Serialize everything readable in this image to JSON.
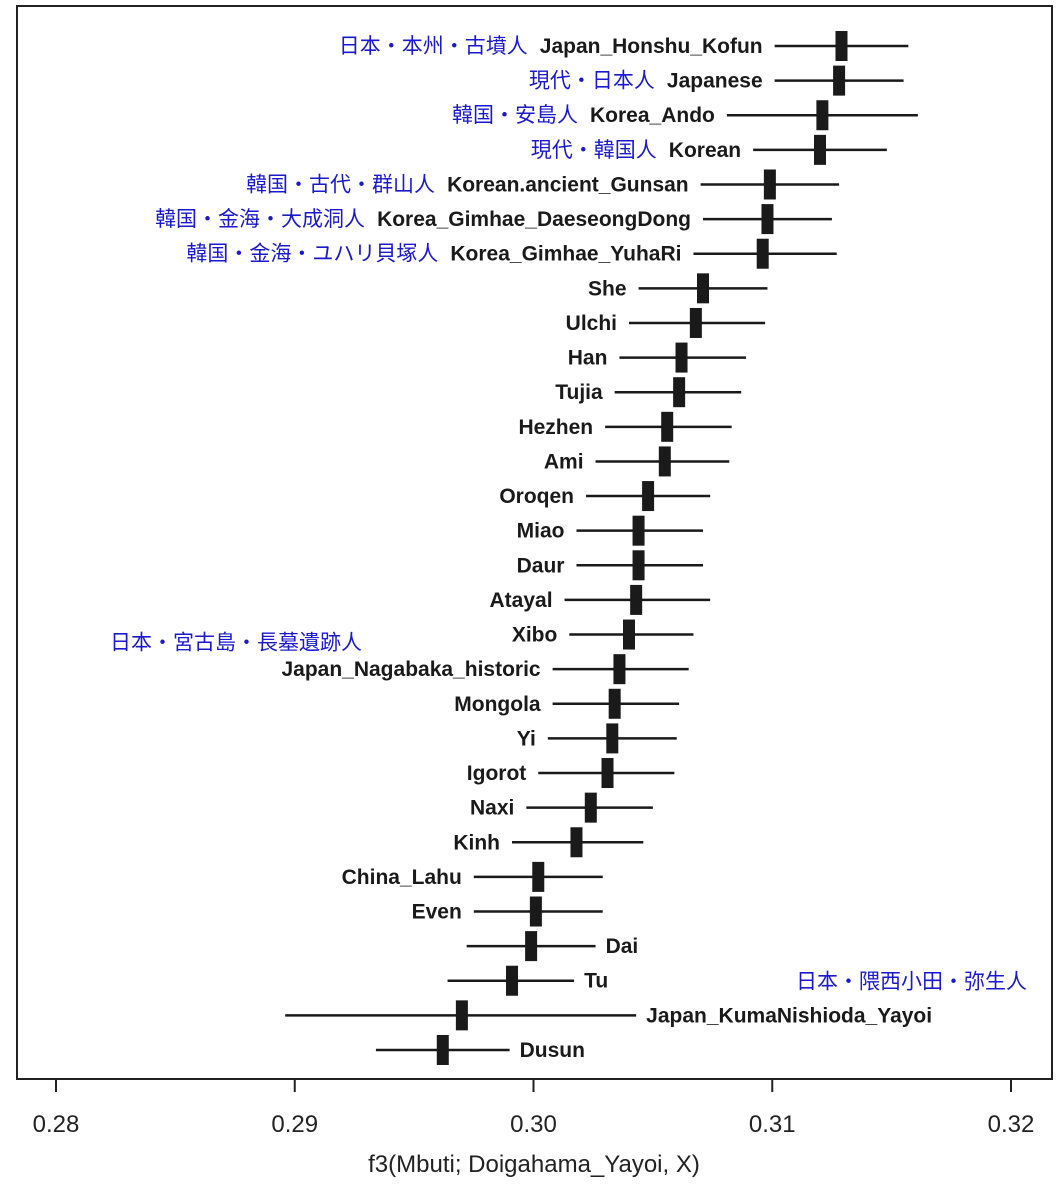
{
  "chart_data": {
    "type": "scatter",
    "title": "",
    "xlabel": "f3(Mbuti; Doigahama_Yayoi, X)",
    "ylabel": "",
    "xlim": [
      0.28,
      0.32
    ],
    "xticks": [
      "0.28",
      "0.29",
      "0.30",
      "0.31",
      "0.32"
    ],
    "grid": false,
    "points": [
      {
        "label": "Japan_Honshu_Kofun",
        "value": 0.3129,
        "lo": 0.3101,
        "hi": 0.3157,
        "label_side": "left",
        "annotation": "日本・本州・古墳人"
      },
      {
        "label": "Japanese",
        "value": 0.3128,
        "lo": 0.3101,
        "hi": 0.3155,
        "label_side": "left",
        "annotation": "現代・日本人"
      },
      {
        "label": "Korea_Ando",
        "value": 0.3121,
        "lo": 0.3081,
        "hi": 0.3161,
        "label_side": "left",
        "annotation": "韓国・安島人"
      },
      {
        "label": "Korean",
        "value": 0.312,
        "lo": 0.3092,
        "hi": 0.3148,
        "label_side": "left",
        "annotation": "現代・韓国人"
      },
      {
        "label": "Korean.ancient_Gunsan",
        "value": 0.3099,
        "lo": 0.307,
        "hi": 0.3128,
        "label_side": "left",
        "annotation": "韓国・古代・群山人"
      },
      {
        "label": "Korea_Gimhae_DaeseongDong",
        "value": 0.3098,
        "lo": 0.3071,
        "hi": 0.3125,
        "label_side": "left",
        "annotation": "韓国・金海・大成洞人"
      },
      {
        "label": "Korea_Gimhae_YuhaRi",
        "value": 0.3096,
        "lo": 0.3067,
        "hi": 0.3127,
        "label_side": "left",
        "annotation": "韓国・金海・ユハリ貝塚人"
      },
      {
        "label": "She",
        "value": 0.3071,
        "lo": 0.3044,
        "hi": 0.3098,
        "label_side": "left",
        "annotation": ""
      },
      {
        "label": "Ulchi",
        "value": 0.3068,
        "lo": 0.304,
        "hi": 0.3097,
        "label_side": "left",
        "annotation": ""
      },
      {
        "label": "Han",
        "value": 0.3062,
        "lo": 0.3036,
        "hi": 0.3089,
        "label_side": "left",
        "annotation": ""
      },
      {
        "label": "Tujia",
        "value": 0.3061,
        "lo": 0.3034,
        "hi": 0.3087,
        "label_side": "left",
        "annotation": ""
      },
      {
        "label": "Hezhen",
        "value": 0.3056,
        "lo": 0.303,
        "hi": 0.3083,
        "label_side": "left",
        "annotation": ""
      },
      {
        "label": "Ami",
        "value": 0.3055,
        "lo": 0.3026,
        "hi": 0.3082,
        "label_side": "left",
        "annotation": ""
      },
      {
        "label": "Oroqen",
        "value": 0.3048,
        "lo": 0.3022,
        "hi": 0.3074,
        "label_side": "left",
        "annotation": ""
      },
      {
        "label": "Miao",
        "value": 0.3044,
        "lo": 0.3018,
        "hi": 0.3071,
        "label_side": "left",
        "annotation": ""
      },
      {
        "label": "Daur",
        "value": 0.3044,
        "lo": 0.3018,
        "hi": 0.3071,
        "label_side": "left",
        "annotation": ""
      },
      {
        "label": "Atayal",
        "value": 0.3043,
        "lo": 0.3013,
        "hi": 0.3074,
        "label_side": "left",
        "annotation": ""
      },
      {
        "label": "Xibo",
        "value": 0.304,
        "lo": 0.3015,
        "hi": 0.3067,
        "label_side": "left",
        "annotation": "日本・宮古島・長墓遺跡人"
      },
      {
        "label": "Japan_Nagabaka_historic",
        "value": 0.3036,
        "lo": 0.3008,
        "hi": 0.3065,
        "label_side": "left",
        "annotation": ""
      },
      {
        "label": "Mongola",
        "value": 0.3034,
        "lo": 0.3008,
        "hi": 0.3061,
        "label_side": "left",
        "annotation": ""
      },
      {
        "label": "Yi",
        "value": 0.3033,
        "lo": 0.3006,
        "hi": 0.306,
        "label_side": "left",
        "annotation": ""
      },
      {
        "label": "Igorot",
        "value": 0.3031,
        "lo": 0.3002,
        "hi": 0.3059,
        "label_side": "left",
        "annotation": ""
      },
      {
        "label": "Naxi",
        "value": 0.3024,
        "lo": 0.2997,
        "hi": 0.305,
        "label_side": "left",
        "annotation": ""
      },
      {
        "label": "Kinh",
        "value": 0.3018,
        "lo": 0.2991,
        "hi": 0.3046,
        "label_side": "left",
        "annotation": ""
      },
      {
        "label": "China_Lahu",
        "value": 0.3002,
        "lo": 0.2975,
        "hi": 0.3029,
        "label_side": "left",
        "annotation": ""
      },
      {
        "label": "Even",
        "value": 0.3001,
        "lo": 0.2975,
        "hi": 0.3029,
        "label_side": "left",
        "annotation": ""
      },
      {
        "label": "Dai",
        "value": 0.2999,
        "lo": 0.2972,
        "hi": 0.3026,
        "label_side": "right",
        "annotation": ""
      },
      {
        "label": "Tu",
        "value": 0.2991,
        "lo": 0.2964,
        "hi": 0.3017,
        "label_side": "right",
        "annotation": ""
      },
      {
        "label": "Japan_KumaNishioda_Yayoi",
        "value": 0.297,
        "lo": 0.2896,
        "hi": 0.3043,
        "label_side": "right",
        "annotation": "日本・隈西小田・弥生人"
      },
      {
        "label": "Dusun",
        "value": 0.2962,
        "lo": 0.2934,
        "hi": 0.299,
        "label_side": "right",
        "annotation": ""
      }
    ]
  }
}
